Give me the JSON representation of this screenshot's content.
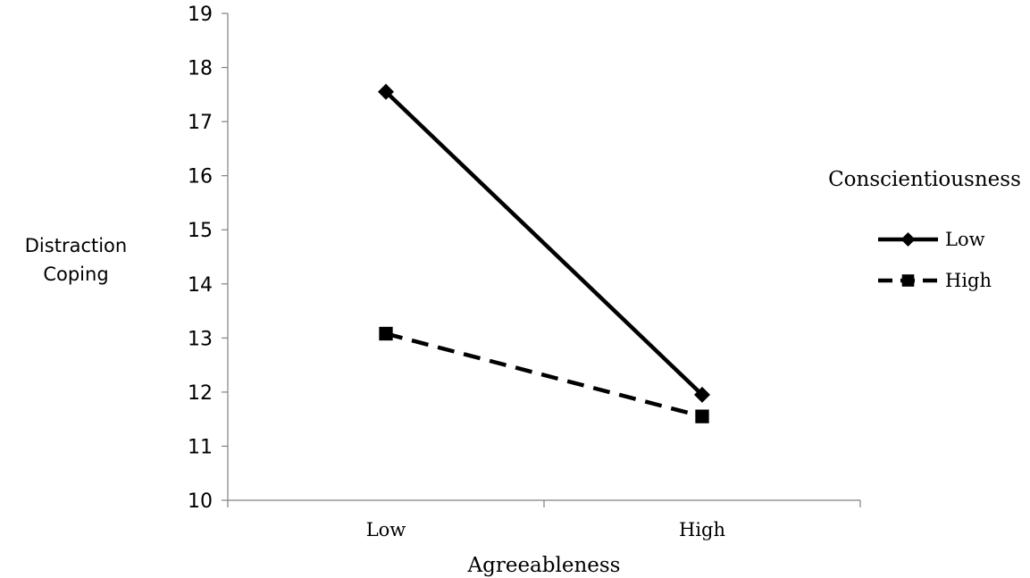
{
  "chart_data": {
    "type": "line",
    "title": "",
    "xlabel": "Agreeableness",
    "ylabel": "Distraction Coping",
    "categories": [
      "Low",
      "High"
    ],
    "ylim": [
      10,
      19
    ],
    "yticks": [
      "10",
      "11",
      "12",
      "13",
      "14",
      "15",
      "16",
      "17",
      "18",
      "19"
    ],
    "grid": false,
    "legend": {
      "title": "Conscientiousness",
      "placement": "right"
    },
    "series": [
      {
        "name": "Low",
        "values": [
          17.55,
          11.95
        ],
        "marker": "diamond",
        "line_style": "solid",
        "color": "#000000"
      },
      {
        "name": "High",
        "values": [
          13.08,
          11.55
        ],
        "marker": "square",
        "line_style": "dashed",
        "color": "#000000"
      }
    ]
  }
}
